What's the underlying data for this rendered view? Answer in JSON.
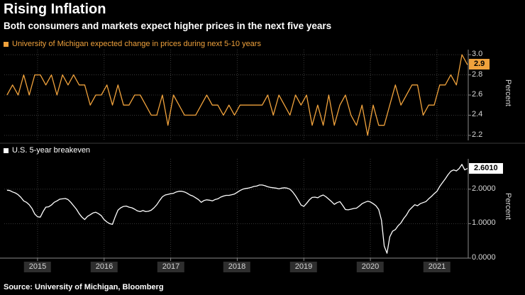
{
  "header": {
    "title": "Rising Inflation",
    "subtitle": "Both consumers and markets expect higher prices in the next five years"
  },
  "source": "Source: University of Michigan, Bloomberg",
  "colors": {
    "background": "#000000",
    "orange_accent": "#F0A23C",
    "white_series": "#FFFFFF",
    "grid": "#3A3A3A",
    "axis": "#8A8A8A",
    "tick_text": "#D8D8D8",
    "year_box_bg": "#2E2E2E"
  },
  "xaxis": {
    "tick_labels": [
      "2015",
      "2016",
      "2017",
      "2018",
      "2019",
      "2020",
      "2021"
    ],
    "xlim_decimal_years": [
      2014.5,
      2021.47
    ]
  },
  "chart_data": [
    {
      "type": "line",
      "panel": "top",
      "legend": "University of Michigan expected change in prices during next 5-10 years",
      "ylabel": "Percent",
      "color": "#F0A23C",
      "ylim": [
        2.15,
        3.05
      ],
      "yticks": [
        2.2,
        2.4,
        2.6,
        2.8,
        3.0
      ],
      "ytick_labels": [
        "2.2",
        "2.4",
        "2.6",
        "2.8",
        "3.0"
      ],
      "last_value_label": "2.9",
      "x_start_decimal_year": 2014.5417,
      "x_step_years": 0.083333,
      "values": [
        2.6,
        2.7,
        2.6,
        2.8,
        2.6,
        2.8,
        2.8,
        2.7,
        2.8,
        2.6,
        2.8,
        2.7,
        2.8,
        2.7,
        2.7,
        2.5,
        2.6,
        2.6,
        2.7,
        2.5,
        2.7,
        2.5,
        2.5,
        2.6,
        2.6,
        2.5,
        2.4,
        2.4,
        2.6,
        2.3,
        2.6,
        2.5,
        2.4,
        2.4,
        2.4,
        2.5,
        2.6,
        2.5,
        2.5,
        2.4,
        2.5,
        2.4,
        2.5,
        2.5,
        2.5,
        2.5,
        2.5,
        2.6,
        2.4,
        2.6,
        2.5,
        2.4,
        2.6,
        2.5,
        2.6,
        2.3,
        2.5,
        2.3,
        2.6,
        2.3,
        2.5,
        2.6,
        2.4,
        2.3,
        2.5,
        2.2,
        2.5,
        2.3,
        2.3,
        2.5,
        2.7,
        2.5,
        2.6,
        2.7,
        2.7,
        2.4,
        2.5,
        2.5,
        2.7,
        2.7,
        2.8,
        2.7,
        3.0,
        2.9
      ]
    },
    {
      "type": "line",
      "panel": "bottom",
      "legend": "U.S. 5-year breakeven",
      "ylabel": "Percent",
      "color": "#FFFFFF",
      "ylim": [
        0,
        2.88
      ],
      "yticks": [
        0,
        1,
        2
      ],
      "ytick_labels": [
        "0.0000",
        "1.0000",
        "2.0000"
      ],
      "last_value_label": "2.6010",
      "x_start_decimal_year": 2014.5417,
      "x_step_years": 0.0416667,
      "values": [
        1.97,
        1.96,
        1.92,
        1.89,
        1.84,
        1.76,
        1.66,
        1.62,
        1.55,
        1.44,
        1.28,
        1.2,
        1.19,
        1.35,
        1.48,
        1.49,
        1.54,
        1.62,
        1.66,
        1.71,
        1.72,
        1.73,
        1.7,
        1.62,
        1.52,
        1.42,
        1.29,
        1.19,
        1.12,
        1.21,
        1.26,
        1.31,
        1.33,
        1.29,
        1.23,
        1.12,
        1.05,
        1.0,
        0.98,
        1.2,
        1.39,
        1.46,
        1.5,
        1.51,
        1.48,
        1.46,
        1.42,
        1.37,
        1.35,
        1.38,
        1.35,
        1.36,
        1.39,
        1.46,
        1.55,
        1.67,
        1.78,
        1.83,
        1.85,
        1.87,
        1.88,
        1.92,
        1.94,
        1.94,
        1.92,
        1.88,
        1.83,
        1.8,
        1.75,
        1.7,
        1.62,
        1.67,
        1.69,
        1.68,
        1.66,
        1.7,
        1.72,
        1.77,
        1.8,
        1.82,
        1.82,
        1.84,
        1.86,
        1.91,
        1.96,
        2.0,
        2.02,
        2.03,
        2.05,
        2.08,
        2.09,
        2.12,
        2.12,
        2.1,
        2.07,
        2.05,
        2.04,
        2.03,
        2.01,
        2.03,
        2.04,
        2.03,
        2.0,
        1.92,
        1.81,
        1.68,
        1.54,
        1.5,
        1.59,
        1.69,
        1.76,
        1.77,
        1.75,
        1.8,
        1.83,
        1.78,
        1.71,
        1.64,
        1.56,
        1.61,
        1.64,
        1.53,
        1.41,
        1.4,
        1.42,
        1.44,
        1.45,
        1.51,
        1.58,
        1.62,
        1.65,
        1.63,
        1.58,
        1.52,
        1.41,
        1.1,
        0.35,
        0.14,
        0.62,
        0.78,
        0.83,
        0.94,
        1.02,
        1.15,
        1.25,
        1.39,
        1.47,
        1.55,
        1.52,
        1.58,
        1.61,
        1.64,
        1.72,
        1.79,
        1.87,
        1.94,
        2.08,
        2.19,
        2.3,
        2.42,
        2.52,
        2.56,
        2.53,
        2.6,
        2.72,
        2.56,
        2.6
      ]
    }
  ]
}
